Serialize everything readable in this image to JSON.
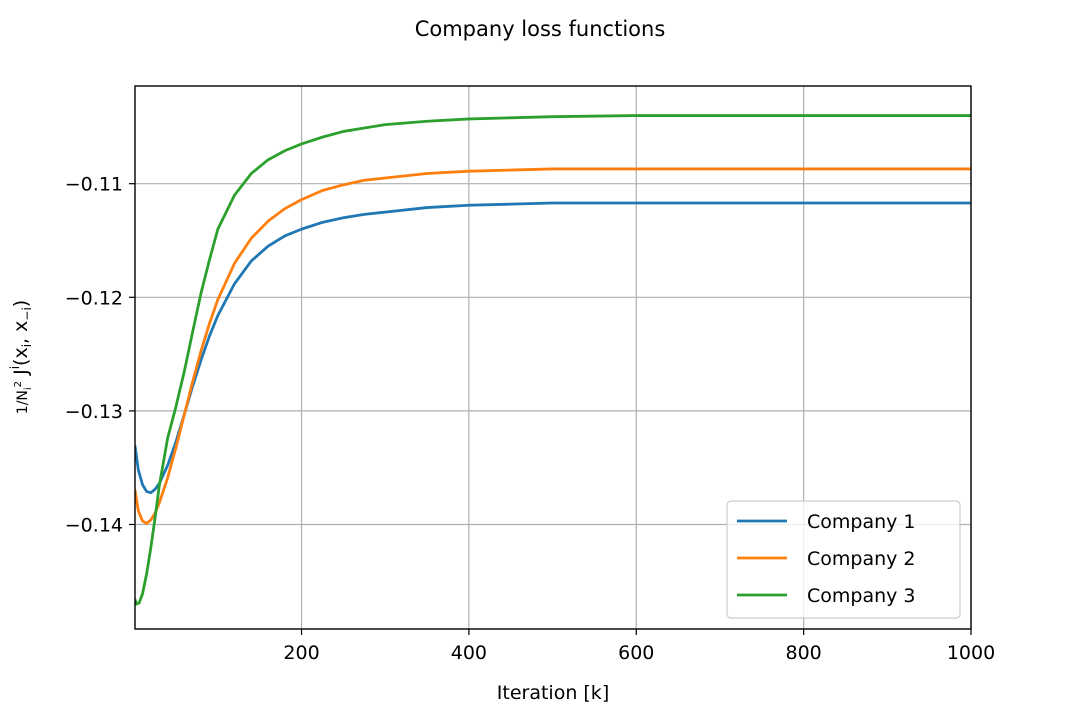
{
  "chart_data": {
    "type": "line",
    "title": "Company loss functions",
    "xlabel": "Iteration [k]",
    "ylabel": "1/N_i^2 J^i(x_i, x_-i)",
    "xlim": [
      1,
      1000
    ],
    "ylim": [
      -0.1492,
      -0.1014
    ],
    "xticks": [
      200,
      400,
      600,
      800,
      1000
    ],
    "xtick_labels": [
      "200",
      "400",
      "600",
      "800",
      "1000"
    ],
    "yticks": [
      -0.14,
      -0.13,
      -0.12,
      -0.11
    ],
    "ytick_labels": [
      "−0.14",
      "−0.13",
      "−0.12",
      "−0.11"
    ],
    "grid": true,
    "legend_position": "lower right",
    "series": [
      {
        "name": "Company 1",
        "color": "#1f77b4",
        "x": [
          1,
          5,
          10,
          15,
          20,
          25,
          30,
          40,
          50,
          60,
          70,
          80,
          90,
          100,
          120,
          140,
          160,
          180,
          200,
          225,
          250,
          275,
          300,
          350,
          400,
          450,
          500,
          600,
          700,
          800,
          900,
          1000
        ],
        "y": [
          -0.1331,
          -0.1352,
          -0.1365,
          -0.1371,
          -0.1372,
          -0.1369,
          -0.1364,
          -0.1348,
          -0.1327,
          -0.1303,
          -0.1278,
          -0.1255,
          -0.1234,
          -0.1216,
          -0.1188,
          -0.1168,
          -0.1155,
          -0.1146,
          -0.114,
          -0.1134,
          -0.113,
          -0.1127,
          -0.1125,
          -0.1121,
          -0.1119,
          -0.1118,
          -0.1117,
          -0.1117,
          -0.1117,
          -0.1117,
          -0.1117,
          -0.1117
        ]
      },
      {
        "name": "Company 2",
        "color": "#ff7f0e",
        "x": [
          1,
          5,
          10,
          15,
          20,
          25,
          30,
          40,
          50,
          60,
          70,
          80,
          90,
          100,
          120,
          140,
          160,
          180,
          200,
          225,
          250,
          275,
          300,
          350,
          400,
          450,
          500,
          600,
          700,
          800,
          900,
          1000
        ],
        "y": [
          -0.137,
          -0.1388,
          -0.1397,
          -0.1399,
          -0.1396,
          -0.139,
          -0.1381,
          -0.1359,
          -0.1332,
          -0.1303,
          -0.1274,
          -0.1247,
          -0.1223,
          -0.1202,
          -0.117,
          -0.1148,
          -0.1133,
          -0.1122,
          -0.1114,
          -0.1106,
          -0.1101,
          -0.1097,
          -0.1095,
          -0.1091,
          -0.1089,
          -0.1088,
          -0.1087,
          -0.1087,
          -0.1087,
          -0.1087,
          -0.1087,
          -0.1087
        ]
      },
      {
        "name": "Company 3",
        "color": "#2ca02c",
        "x": [
          1,
          3,
          6,
          10,
          15,
          20,
          25,
          30,
          40,
          50,
          60,
          70,
          80,
          90,
          100,
          120,
          140,
          160,
          180,
          200,
          225,
          250,
          275,
          300,
          350,
          400,
          450,
          500,
          600,
          700,
          800,
          900,
          1000
        ],
        "y": [
          -0.1466,
          -0.147,
          -0.1469,
          -0.1461,
          -0.1443,
          -0.142,
          -0.1394,
          -0.1366,
          -0.1324,
          -0.1296,
          -0.1265,
          -0.123,
          -0.1196,
          -0.1167,
          -0.114,
          -0.111,
          -0.1091,
          -0.1079,
          -0.1071,
          -0.1065,
          -0.1059,
          -0.1054,
          -0.1051,
          -0.1048,
          -0.1045,
          -0.1043,
          -0.1042,
          -0.1041,
          -0.104,
          -0.104,
          -0.104,
          -0.104,
          -0.104
        ]
      }
    ]
  }
}
